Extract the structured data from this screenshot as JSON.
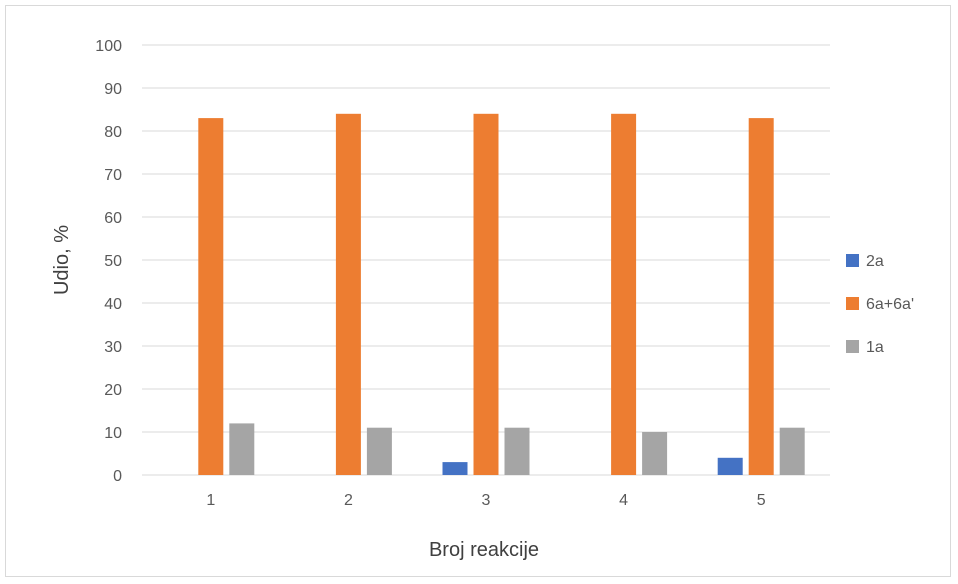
{
  "chart_data": {
    "type": "bar",
    "categories": [
      "1",
      "2",
      "3",
      "4",
      "5"
    ],
    "series": [
      {
        "name": "2a",
        "color": "#4472c4",
        "values": [
          0,
          0,
          3,
          0,
          4
        ]
      },
      {
        "name": "6a+6a'",
        "color": "#ed7d31",
        "values": [
          83,
          84,
          84,
          84,
          83
        ]
      },
      {
        "name": "1a",
        "color": "#a5a5a5",
        "values": [
          12,
          11,
          11,
          10,
          11
        ]
      }
    ],
    "xlabel": "Broj reakcije",
    "ylabel": "Udio, %",
    "ylim": [
      0,
      100
    ],
    "yticks": [
      0,
      10,
      20,
      30,
      40,
      50,
      60,
      70,
      80,
      90,
      100
    ],
    "grid": true,
    "legend": "right"
  }
}
